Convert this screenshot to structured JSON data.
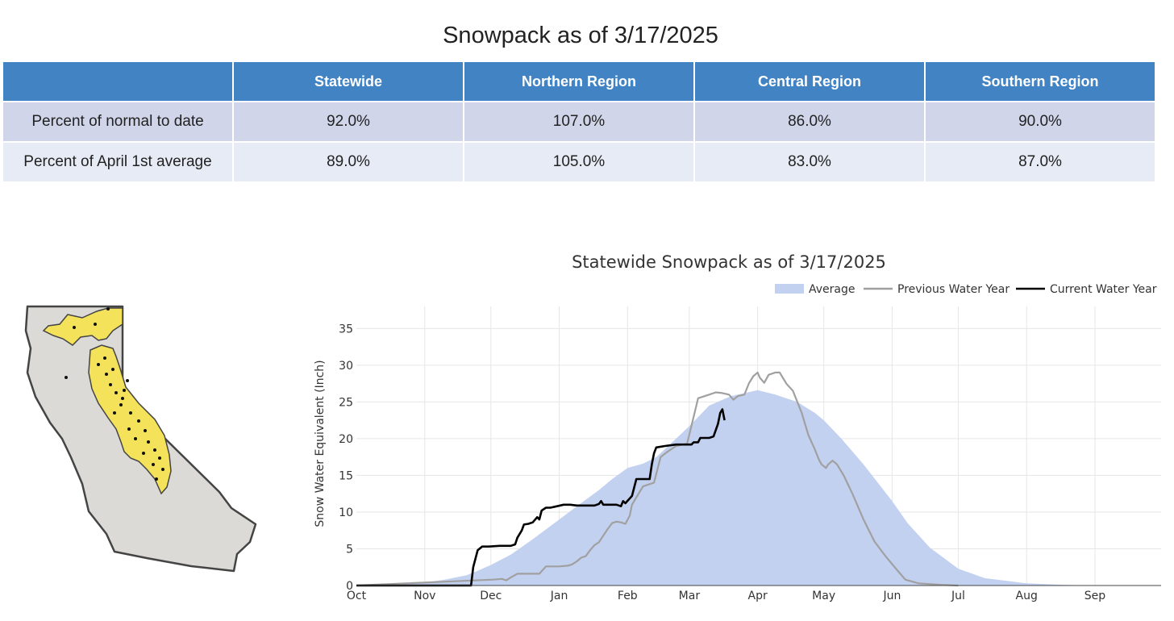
{
  "page": {
    "title": "Snowpack as of 3/17/2025"
  },
  "table": {
    "headers": [
      "",
      "Statewide",
      "Northern Region",
      "Central Region",
      "Southern Region"
    ],
    "rows": [
      {
        "label": "Percent of normal to date",
        "values": [
          "92.0%",
          "107.0%",
          "86.0%",
          "90.0%"
        ]
      },
      {
        "label": "Percent of April 1st average",
        "values": [
          "89.0%",
          "105.0%",
          "83.0%",
          "87.0%"
        ]
      }
    ]
  },
  "colors": {
    "header_bg": "#4283c4",
    "row_odd": "#d0d5ea",
    "row_even": "#e7ebf5",
    "average_fill": "#c3d1f0",
    "previous_line": "#a0a0a0",
    "current_line": "#000000",
    "map_state": "#dcdad6",
    "map_region": "#f4e35a"
  },
  "map": {
    "icon": "california-snow-course-map"
  },
  "chart_data": {
    "type": "line",
    "title": "Statewide Snowpack as of 3/17/2025",
    "xlabel": "",
    "ylabel": "Snow Water Equivalent (Inch)",
    "xlim": [
      0,
      365
    ],
    "ylim": [
      0,
      38
    ],
    "yticks": [
      0,
      5,
      10,
      15,
      20,
      25,
      30,
      35
    ],
    "xticks": [
      {
        "label": "Oct",
        "day": 0
      },
      {
        "label": "Nov",
        "day": 31
      },
      {
        "label": "Dec",
        "day": 61
      },
      {
        "label": "Jan",
        "day": 92
      },
      {
        "label": "Feb",
        "day": 123
      },
      {
        "label": "Mar",
        "day": 151
      },
      {
        "label": "Apr",
        "day": 182
      },
      {
        "label": "May",
        "day": 212
      },
      {
        "label": "Jun",
        "day": 243
      },
      {
        "label": "Jul",
        "day": 273
      },
      {
        "label": "Aug",
        "day": 304
      },
      {
        "label": "Sep",
        "day": 335
      }
    ],
    "grid": true,
    "legend_position": "top-right",
    "series": [
      {
        "name": "Average",
        "kind": "area",
        "points": [
          [
            0,
            0
          ],
          [
            10,
            0
          ],
          [
            20,
            0.1
          ],
          [
            31,
            0.4
          ],
          [
            40,
            0.8
          ],
          [
            50,
            1.4
          ],
          [
            55,
            2
          ],
          [
            61,
            2.8
          ],
          [
            70,
            4.2
          ],
          [
            80,
            6.3
          ],
          [
            92,
            9
          ],
          [
            100,
            10.8
          ],
          [
            110,
            13
          ],
          [
            116,
            14.5
          ],
          [
            123,
            16
          ],
          [
            130,
            16.6
          ],
          [
            136,
            17.5
          ],
          [
            145,
            20
          ],
          [
            151,
            21.7
          ],
          [
            160,
            24.5
          ],
          [
            170,
            25.8
          ],
          [
            182,
            26.6
          ],
          [
            190,
            26
          ],
          [
            200,
            25
          ],
          [
            208,
            23.5
          ],
          [
            212,
            22.5
          ],
          [
            220,
            20
          ],
          [
            230,
            16.5
          ],
          [
            243,
            11.5
          ],
          [
            250,
            8.5
          ],
          [
            260,
            5.2
          ],
          [
            273,
            2.3
          ],
          [
            285,
            1
          ],
          [
            304,
            0.3
          ],
          [
            320,
            0.1
          ],
          [
            335,
            0
          ],
          [
            365,
            0
          ]
        ]
      },
      {
        "name": "Previous Water Year",
        "kind": "line",
        "points": [
          [
            0,
            0
          ],
          [
            62,
            0.8
          ],
          [
            66,
            0.9
          ],
          [
            68,
            0.7
          ],
          [
            70,
            1.1
          ],
          [
            73,
            1.6
          ],
          [
            80,
            1.6
          ],
          [
            83,
            1.6
          ],
          [
            86,
            2.6
          ],
          [
            92,
            2.6
          ],
          [
            96,
            2.7
          ],
          [
            98,
            2.9
          ],
          [
            100,
            3.3
          ],
          [
            102,
            3.8
          ],
          [
            104,
            4
          ],
          [
            106,
            4.8
          ],
          [
            108,
            5.5
          ],
          [
            110,
            5.9
          ],
          [
            112,
            6.8
          ],
          [
            114,
            7.7
          ],
          [
            116,
            8.5
          ],
          [
            118,
            8.7
          ],
          [
            120,
            8.6
          ],
          [
            122,
            8.4
          ],
          [
            124,
            9.5
          ],
          [
            125,
            11
          ],
          [
            127,
            12
          ],
          [
            130,
            13.5
          ],
          [
            135,
            14
          ],
          [
            138,
            17.5
          ],
          [
            141,
            18.2
          ],
          [
            145,
            19
          ],
          [
            148,
            19.2
          ],
          [
            150,
            19.3
          ],
          [
            153,
            23
          ],
          [
            155,
            25.5
          ],
          [
            160,
            26
          ],
          [
            163,
            26.3
          ],
          [
            166,
            26.2
          ],
          [
            169,
            26
          ],
          [
            171,
            25.3
          ],
          [
            173,
            25.8
          ],
          [
            176,
            26
          ],
          [
            178,
            27.5
          ],
          [
            180,
            28.5
          ],
          [
            182,
            29
          ],
          [
            183,
            28.3
          ],
          [
            185,
            27.6
          ],
          [
            187,
            28.7
          ],
          [
            190,
            29
          ],
          [
            192,
            29
          ],
          [
            195,
            27.5
          ],
          [
            198,
            26.5
          ],
          [
            202,
            23.5
          ],
          [
            205,
            20.5
          ],
          [
            208,
            18.5
          ],
          [
            210,
            17
          ],
          [
            211,
            16.5
          ],
          [
            213,
            16
          ],
          [
            214,
            16.5
          ],
          [
            216,
            17
          ],
          [
            218,
            16.5
          ],
          [
            221,
            15
          ],
          [
            225,
            12.5
          ],
          [
            230,
            9
          ],
          [
            235,
            6
          ],
          [
            240,
            4
          ],
          [
            245,
            2.2
          ],
          [
            249,
            0.8
          ],
          [
            255,
            0.3
          ],
          [
            260,
            0.2
          ],
          [
            265,
            0.1
          ],
          [
            273,
            0
          ]
        ]
      },
      {
        "name": "Current Water Year",
        "kind": "line",
        "points": [
          [
            0,
            0
          ],
          [
            52,
            0
          ],
          [
            53,
            2.5
          ],
          [
            55,
            4.8
          ],
          [
            57,
            5.3
          ],
          [
            60,
            5.3
          ],
          [
            65,
            5.4
          ],
          [
            70,
            5.4
          ],
          [
            72,
            5.6
          ],
          [
            73,
            6.5
          ],
          [
            75,
            7.5
          ],
          [
            76,
            8.3
          ],
          [
            78,
            8.4
          ],
          [
            80,
            8.6
          ],
          [
            82,
            9.3
          ],
          [
            83,
            9
          ],
          [
            84,
            10.2
          ],
          [
            86,
            10.6
          ],
          [
            88,
            10.6
          ],
          [
            91,
            10.8
          ],
          [
            94,
            11
          ],
          [
            97,
            11
          ],
          [
            100,
            10.9
          ],
          [
            104,
            10.9
          ],
          [
            108,
            10.9
          ],
          [
            110,
            11.1
          ],
          [
            111,
            11.5
          ],
          [
            112,
            11
          ],
          [
            115,
            11
          ],
          [
            118,
            11
          ],
          [
            120,
            10.8
          ],
          [
            121,
            11.5
          ],
          [
            122,
            11.2
          ],
          [
            125,
            12.2
          ],
          [
            127,
            14.5
          ],
          [
            133,
            14.5
          ],
          [
            134,
            16.5
          ],
          [
            135,
            18
          ],
          [
            136,
            18.8
          ],
          [
            140,
            19
          ],
          [
            145,
            19.2
          ],
          [
            148,
            19.2
          ],
          [
            152,
            19.2
          ],
          [
            153,
            19.5
          ],
          [
            155,
            19.5
          ],
          [
            156,
            20.1
          ],
          [
            160,
            20.1
          ],
          [
            162,
            20.3
          ],
          [
            164,
            22
          ],
          [
            165,
            23.5
          ],
          [
            166,
            24
          ],
          [
            167,
            22.5
          ]
        ]
      }
    ]
  }
}
